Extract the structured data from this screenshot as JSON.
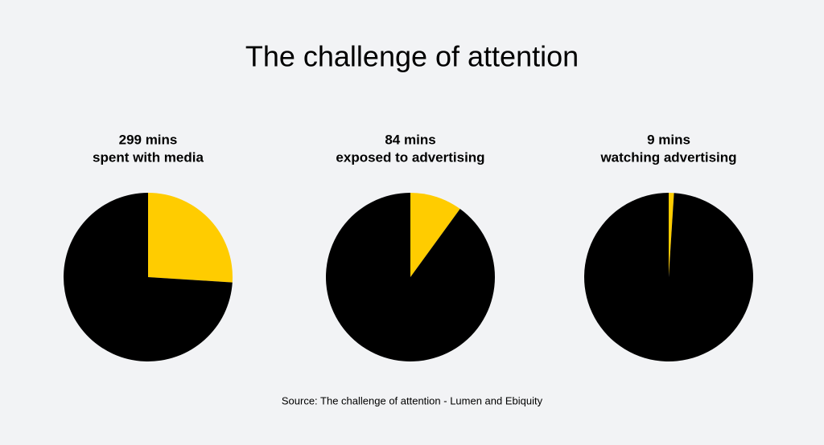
{
  "title": "The challenge of attention",
  "source": "Source: The challenge of attention - Lumen and Ebiquity",
  "chart_data": [
    {
      "type": "pie",
      "title": "299 mins",
      "subtitle": "spent with media",
      "values": [
        26,
        74
      ],
      "colors": [
        "#ffcc00",
        "#000000"
      ]
    },
    {
      "type": "pie",
      "title": "84 mins",
      "subtitle": "exposed to advertising",
      "values": [
        10,
        90
      ],
      "colors": [
        "#ffcc00",
        "#000000"
      ]
    },
    {
      "type": "pie",
      "title": "9 mins",
      "subtitle": "watching advertising",
      "values": [
        1,
        99
      ],
      "colors": [
        "#ffcc00",
        "#000000"
      ]
    }
  ]
}
